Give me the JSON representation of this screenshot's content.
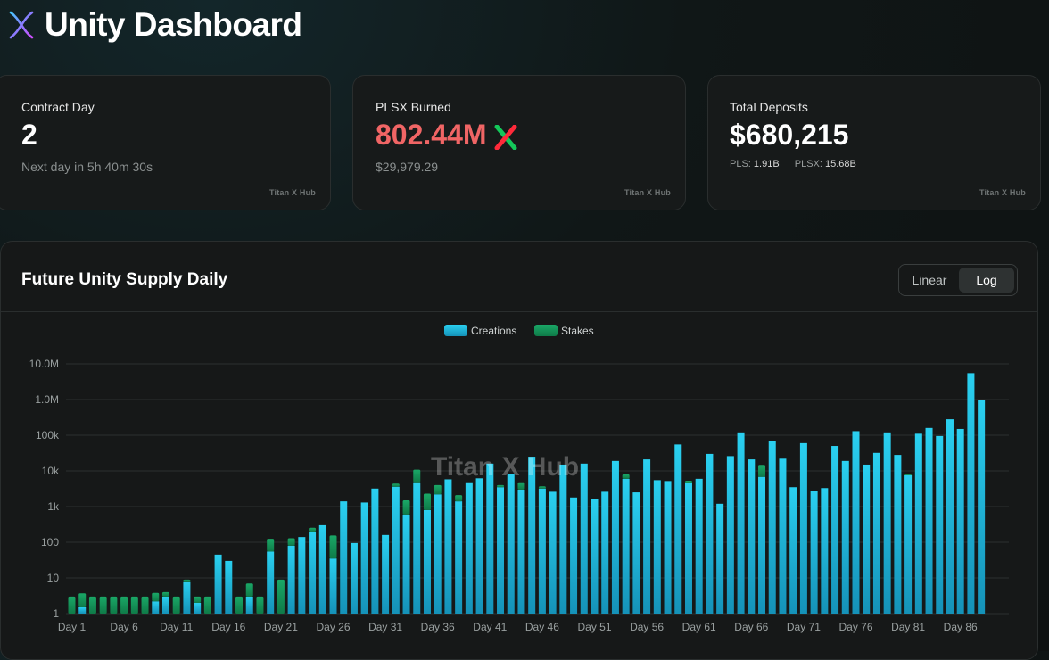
{
  "app": {
    "title": "Unity Dashboard"
  },
  "cards": [
    {
      "label": "Contract Day",
      "value": "2",
      "sub": "Next day in 5h 40m 30s",
      "brand": "Titan X Hub"
    },
    {
      "label": "PLSX Burned",
      "value": "802.44M",
      "sub": "$29,979.29",
      "brand": "Titan X Hub",
      "value_color": "#f06565"
    },
    {
      "label": "Total Deposits",
      "value": "$680,215",
      "pls_label": "PLS:",
      "pls_value": "1.91B",
      "plsx_label": "PLSX:",
      "plsx_value": "15.68B",
      "brand": "Titan X Hub"
    }
  ],
  "panel": {
    "title": "Future Unity Supply Daily",
    "toggle": {
      "options": [
        "Linear",
        "Log"
      ],
      "active": "Log"
    },
    "watermark": "Titan X Hub"
  },
  "colors": {
    "creations": "#1ec3e6",
    "stakes": "#14915a",
    "accent_red": "#f06565"
  },
  "chart_data": {
    "type": "bar",
    "stacked": true,
    "scale": "log",
    "ylim": [
      1,
      10000000
    ],
    "ytick_labels": [
      "1",
      "10",
      "100",
      "1k",
      "10k",
      "100k",
      "1.0M",
      "10.0M"
    ],
    "xtick_labels": [
      "Day 1",
      "Day 6",
      "Day 11",
      "Day 16",
      "Day 21",
      "Day 26",
      "Day 31",
      "Day 36",
      "Day 41",
      "Day 46",
      "Day 51",
      "Day 56",
      "Day 61",
      "Day 66",
      "Day 71",
      "Day 76",
      "Day 81",
      "Day 86"
    ],
    "legend": {
      "position": "top-center"
    },
    "grid": true,
    "series": [
      {
        "name": "Creations",
        "color": "#1ec3e6",
        "values": [
          1,
          1.5,
          1,
          1,
          1,
          1,
          1,
          1,
          2.2,
          3,
          1,
          8,
          2,
          1,
          45,
          30,
          1,
          3,
          1,
          55,
          1,
          80,
          140,
          200,
          300,
          35,
          1400,
          95,
          1300,
          3200,
          160,
          3600,
          600,
          4800,
          800,
          2200,
          5800,
          1400,
          4800,
          6200,
          16000,
          3500,
          8000,
          3000,
          25000,
          3200,
          2600,
          15000,
          1800,
          16000,
          1600,
          2600,
          19000,
          6000,
          2500,
          21000,
          5500,
          5200,
          55000,
          4500,
          6000,
          30000,
          1200,
          26000,
          120000,
          21000,
          6800,
          70000,
          22000,
          3500,
          60000,
          2800,
          3300,
          50000,
          19000,
          130000,
          15000,
          32000,
          120000,
          28000,
          7500,
          110000,
          160000,
          95000,
          280000,
          150000,
          5500000,
          950000
        ]
      },
      {
        "name": "Stakes",
        "color": "#14915a",
        "values": [
          2,
          2.2,
          2,
          2,
          2,
          2,
          2,
          2,
          1.6,
          1,
          2,
          1,
          1,
          2,
          0,
          0,
          2,
          4,
          2,
          70,
          8,
          50,
          0,
          55,
          0,
          120,
          0,
          0,
          0,
          0,
          0,
          800,
          900,
          6000,
          1500,
          1800,
          0,
          700,
          0,
          0,
          0,
          500,
          0,
          1800,
          0,
          500,
          0,
          0,
          0,
          0,
          0,
          0,
          0,
          2000,
          0,
          0,
          0,
          0,
          0,
          800,
          0,
          0,
          0,
          0,
          0,
          0,
          8000,
          0,
          0,
          0,
          0,
          0,
          0,
          0,
          0,
          0,
          0,
          0,
          0,
          0,
          500,
          0,
          0,
          0,
          0,
          0,
          0,
          0
        ]
      }
    ]
  }
}
